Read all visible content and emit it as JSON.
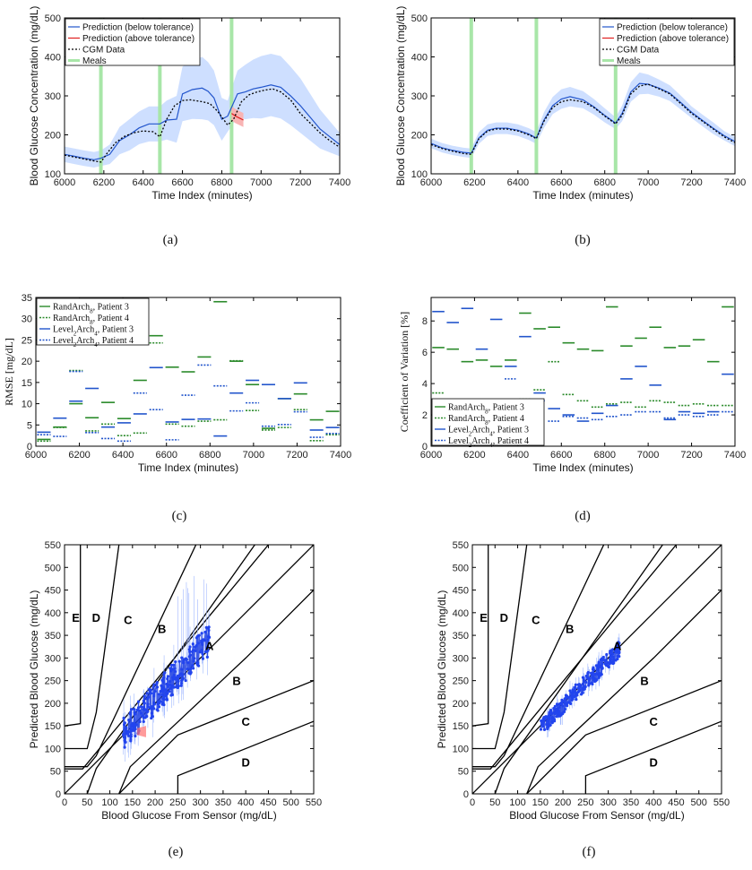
{
  "chart_data": [
    {
      "id": "a",
      "type": "line",
      "caption": "(a)",
      "xlabel": "Time Index (minutes)",
      "ylabel": "Blood Glucose Concentration (mg/dL)",
      "xlim": [
        6000,
        7400
      ],
      "ylim": [
        100,
        500
      ],
      "xticks": [
        6000,
        6200,
        6400,
        6600,
        6800,
        7000,
        7200,
        7400
      ],
      "yticks": [
        100,
        200,
        300,
        400,
        500
      ],
      "legend_position": "top-left",
      "legend": [
        "Prediction (below tolerance)",
        "Prediction (above tolerance)",
        "CGM Data",
        "Meals"
      ],
      "meals": [
        6185,
        6485,
        6850
      ],
      "cgm": {
        "x": [
          6000,
          6050,
          6100,
          6150,
          6185,
          6220,
          6260,
          6300,
          6350,
          6400,
          6450,
          6485,
          6520,
          6560,
          6600,
          6640,
          6700,
          6740,
          6780,
          6830,
          6860,
          6900,
          6940,
          6980,
          7020,
          7060,
          7100,
          7150,
          7200,
          7250,
          7300,
          7350,
          7400
        ],
        "y": [
          148,
          143,
          138,
          133,
          130,
          155,
          180,
          195,
          205,
          210,
          208,
          195,
          240,
          275,
          288,
          290,
          285,
          280,
          260,
          225,
          240,
          285,
          303,
          310,
          315,
          318,
          310,
          290,
          255,
          230,
          205,
          185,
          168
        ]
      },
      "prediction": {
        "x": [
          6000,
          6050,
          6100,
          6150,
          6185,
          6230,
          6280,
          6330,
          6380,
          6430,
          6485,
          6520,
          6570,
          6600,
          6650,
          6700,
          6730,
          6760,
          6800,
          6830,
          6880,
          6920,
          6960,
          7000,
          7050,
          7100,
          7150,
          7200,
          7250,
          7300,
          7350,
          7400
        ],
        "y": [
          150,
          145,
          140,
          136,
          140,
          150,
          185,
          200,
          218,
          228,
          228,
          238,
          240,
          305,
          316,
          320,
          312,
          295,
          240,
          248,
          305,
          310,
          318,
          322,
          328,
          322,
          300,
          275,
          245,
          215,
          195,
          175
        ],
        "band": [
          20,
          20,
          20,
          20,
          20,
          25,
          35,
          40,
          42,
          45,
          45,
          50,
          60,
          70,
          75,
          80,
          75,
          70,
          55,
          40,
          60,
          70,
          75,
          80,
          80,
          80,
          75,
          70,
          60,
          50,
          40,
          30
        ]
      },
      "above_tolerance": {
        "x": [
          6850,
          6870,
          6890,
          6910
        ],
        "y": [
          255,
          248,
          243,
          238
        ]
      }
    },
    {
      "id": "b",
      "type": "line",
      "caption": "(b)",
      "xlabel": "Time Index (minutes)",
      "ylabel": "Blood Glucose Concentration (mg/dL)",
      "xlim": [
        6000,
        7400
      ],
      "ylim": [
        100,
        500
      ],
      "xticks": [
        6000,
        6200,
        6400,
        6600,
        6800,
        7000,
        7200,
        7400
      ],
      "yticks": [
        100,
        200,
        300,
        400,
        500
      ],
      "legend_position": "top-right",
      "legend": [
        "Prediction (below tolerance)",
        "Prediction (above tolerance)",
        "CGM Data",
        "Meals"
      ],
      "meals": [
        6185,
        6485,
        6850
      ],
      "cgm": {
        "x": [
          6000,
          6050,
          6100,
          6150,
          6185,
          6220,
          6260,
          6300,
          6350,
          6400,
          6450,
          6485,
          6520,
          6560,
          6600,
          6640,
          6700,
          6750,
          6800,
          6850,
          6880,
          6920,
          6960,
          7000,
          7050,
          7100,
          7150,
          7200,
          7250,
          7300,
          7350,
          7400
        ],
        "y": [
          175,
          165,
          158,
          152,
          150,
          190,
          210,
          215,
          215,
          210,
          200,
          190,
          235,
          270,
          285,
          290,
          285,
          270,
          248,
          228,
          250,
          305,
          325,
          330,
          318,
          305,
          280,
          255,
          235,
          215,
          195,
          180
        ]
      },
      "prediction": {
        "x": [
          6000,
          6050,
          6100,
          6150,
          6185,
          6220,
          6260,
          6300,
          6350,
          6400,
          6450,
          6485,
          6520,
          6560,
          6600,
          6640,
          6700,
          6750,
          6800,
          6850,
          6880,
          6920,
          6960,
          7000,
          7050,
          7100,
          7150,
          7200,
          7250,
          7300,
          7350,
          7400
        ],
        "y": [
          178,
          167,
          160,
          155,
          153,
          192,
          212,
          217,
          217,
          212,
          202,
          192,
          238,
          275,
          292,
          298,
          290,
          272,
          250,
          230,
          255,
          310,
          332,
          330,
          320,
          307,
          283,
          258,
          237,
          217,
          198,
          183
        ],
        "band": [
          12,
          12,
          12,
          12,
          12,
          15,
          15,
          15,
          15,
          15,
          15,
          15,
          20,
          22,
          25,
          25,
          22,
          20,
          18,
          15,
          20,
          25,
          28,
          25,
          22,
          20,
          18,
          15,
          15,
          15,
          12,
          12
        ]
      }
    },
    {
      "id": "c",
      "type": "step",
      "caption": "(c)",
      "xlabel": "Time Index (minutes)",
      "ylabel": "RMSE [mg/dL]",
      "xlim": [
        6000,
        7400
      ],
      "ylim": [
        0,
        35
      ],
      "xticks": [
        6000,
        6200,
        6400,
        6600,
        6800,
        7000,
        7200,
        7400
      ],
      "yticks": [
        0,
        5,
        10,
        15,
        20,
        25,
        30,
        35
      ],
      "legend_position": "top-left",
      "series": [
        {
          "name": "RandArch",
          "sub": "8",
          "suffix": ", Patient 3",
          "color": "#2a8a2a",
          "dash": false,
          "values": [
            1.6,
            4.5,
            10,
            6.7,
            10.3,
            6.5,
            15.5,
            26,
            18.6,
            17.5,
            21,
            34,
            20,
            14.5,
            4.2,
            11.2,
            12.3,
            6.2,
            8.2
          ]
        },
        {
          "name": "RandArch",
          "sub": "8",
          "suffix": ", Patient 4",
          "color": "#2a8a2a",
          "dash": true,
          "values": [
            1.2,
            4.4,
            17.8,
            3.6,
            5.2,
            2.5,
            3.1,
            24.3,
            5.2,
            4.7,
            5.9,
            6.2,
            20.1,
            8.4,
            3.8,
            4.4,
            8.6,
            1.3,
            2.7
          ]
        },
        {
          "name": "Level",
          "sub": "2",
          "mid": "Arch",
          "sub2": "4",
          "suffix": ", Patient 3",
          "color": "#2255cc",
          "dash": false,
          "values": [
            3.3,
            6.6,
            10.6,
            13.6,
            4.5,
            5.5,
            7.6,
            18.5,
            5.7,
            6.3,
            6.4,
            2.4,
            12.5,
            15.5,
            14.5,
            11.2,
            14.9,
            3.8,
            4.4
          ]
        },
        {
          "name": "Level",
          "sub": "2",
          "mid": "Arch",
          "sub2": "4",
          "suffix": ", Patient 4",
          "color": "#2255cc",
          "dash": true,
          "values": [
            2.7,
            2.3,
            17.6,
            3.2,
            1.8,
            1.2,
            12.5,
            8.6,
            1.5,
            12,
            19.1,
            14.2,
            8.3,
            10.2,
            4.7,
            5.1,
            8.1,
            2.1,
            3
          ]
        }
      ]
    },
    {
      "id": "d",
      "type": "step",
      "caption": "(d)",
      "xlabel": "Time Index (minutes)",
      "ylabel": "Coefficient of Variation [%]",
      "xlim": [
        6000,
        7400
      ],
      "ylim": [
        0,
        9.5
      ],
      "xticks": [
        6000,
        6200,
        6400,
        6600,
        6800,
        7000,
        7200,
        7400
      ],
      "yticks": [
        0,
        2,
        4,
        6,
        8
      ],
      "legend_position": "bottom-left",
      "series": [
        {
          "name": "RandArch",
          "sub": "8",
          "suffix": ", Patient 3",
          "color": "#2a8a2a",
          "dash": false,
          "values": [
            6.3,
            6.2,
            5.4,
            5.5,
            5.1,
            5.5,
            8.5,
            7.5,
            7.6,
            6.6,
            6.2,
            6.1,
            8.9,
            6.4,
            6.9,
            7.6,
            6.3,
            6.4,
            6.8,
            5.4,
            8.9
          ]
        },
        {
          "name": "RandArch",
          "sub": "8",
          "suffix": ", Patient 4",
          "color": "#2a8a2a",
          "dash": true,
          "values": [
            3.4,
            2.5,
            2.0,
            2.3,
            2.2,
            2.1,
            3.0,
            3.6,
            5.4,
            3.3,
            2.9,
            2.5,
            2.7,
            2.8,
            2.5,
            2.9,
            2.8,
            2.6,
            2.7,
            2.6,
            2.6
          ]
        },
        {
          "name": "Level",
          "sub": "2",
          "mid": "Arch",
          "sub2": "4",
          "suffix": ", Patient 3",
          "color": "#2255cc",
          "dash": false,
          "values": [
            8.6,
            7.9,
            8.8,
            6.2,
            8.1,
            5.1,
            7.0,
            3.4,
            2.4,
            2.0,
            1.6,
            2.1,
            2.6,
            4.3,
            5.1,
            3.9,
            1.7,
            2.2,
            2.1,
            2.2,
            4.6
          ]
        },
        {
          "name": "Level",
          "sub": "2",
          "mid": "Arch",
          "sub2": "4",
          "suffix": ", Patient 4",
          "color": "#2255cc",
          "dash": true,
          "values": [
            2.1,
            2.5,
            2.2,
            2.3,
            2.4,
            4.3,
            2.3,
            2.9,
            1.6,
            1.9,
            1.8,
            1.7,
            1.9,
            2.0,
            2.2,
            2.2,
            1.8,
            2.0,
            1.9,
            2.0,
            2.2
          ]
        }
      ]
    },
    {
      "id": "e",
      "type": "scatter",
      "caption": "(e)",
      "xlabel": "Blood Glucose From Sensor (mg/dL)",
      "ylabel": "Predicted Blood Glucose (mg/dL)",
      "xlim": [
        0,
        550
      ],
      "ylim": [
        0,
        550
      ],
      "xticks": [
        0,
        50,
        100,
        150,
        200,
        250,
        300,
        350,
        400,
        450,
        500,
        550
      ],
      "yticks": [
        0,
        50,
        100,
        150,
        200,
        250,
        300,
        350,
        400,
        450,
        500,
        550
      ],
      "zone_labels": [
        {
          "text": "E",
          "x": 25,
          "y": 380
        },
        {
          "text": "D",
          "x": 70,
          "y": 380
        },
        {
          "text": "C",
          "x": 140,
          "y": 375
        },
        {
          "text": "B",
          "x": 215,
          "y": 355
        },
        {
          "text": "A",
          "x": 320,
          "y": 318
        },
        {
          "text": "B",
          "x": 380,
          "y": 240
        },
        {
          "text": "C",
          "x": 400,
          "y": 150
        },
        {
          "text": "D",
          "x": 400,
          "y": 60
        }
      ],
      "cloud": {
        "center_slope": 1.1,
        "x_range": [
          130,
          325
        ],
        "spread": 35,
        "above_tolerance_x": [
          160,
          180
        ]
      }
    },
    {
      "id": "f",
      "type": "scatter",
      "caption": "(f)",
      "xlabel": "Blood Glucose From Sensor (mg/dL)",
      "ylabel": "Predicted Blood Glucose (mg/dL)",
      "xlim": [
        0,
        550
      ],
      "ylim": [
        0,
        550
      ],
      "xticks": [
        0,
        50,
        100,
        150,
        200,
        250,
        300,
        350,
        400,
        450,
        500,
        550
      ],
      "yticks": [
        0,
        50,
        100,
        150,
        200,
        250,
        300,
        350,
        400,
        450,
        500,
        550
      ],
      "zone_labels": [
        {
          "text": "E",
          "x": 25,
          "y": 380
        },
        {
          "text": "D",
          "x": 70,
          "y": 380
        },
        {
          "text": "C",
          "x": 140,
          "y": 375
        },
        {
          "text": "B",
          "x": 215,
          "y": 355
        },
        {
          "text": "A",
          "x": 320,
          "y": 318
        },
        {
          "text": "B",
          "x": 380,
          "y": 240
        },
        {
          "text": "C",
          "x": 400,
          "y": 150
        },
        {
          "text": "D",
          "x": 400,
          "y": 60
        }
      ],
      "cloud": {
        "center_slope": 1.0,
        "x_range": [
          150,
          325
        ],
        "spread": 18,
        "above_tolerance_x": []
      }
    }
  ]
}
